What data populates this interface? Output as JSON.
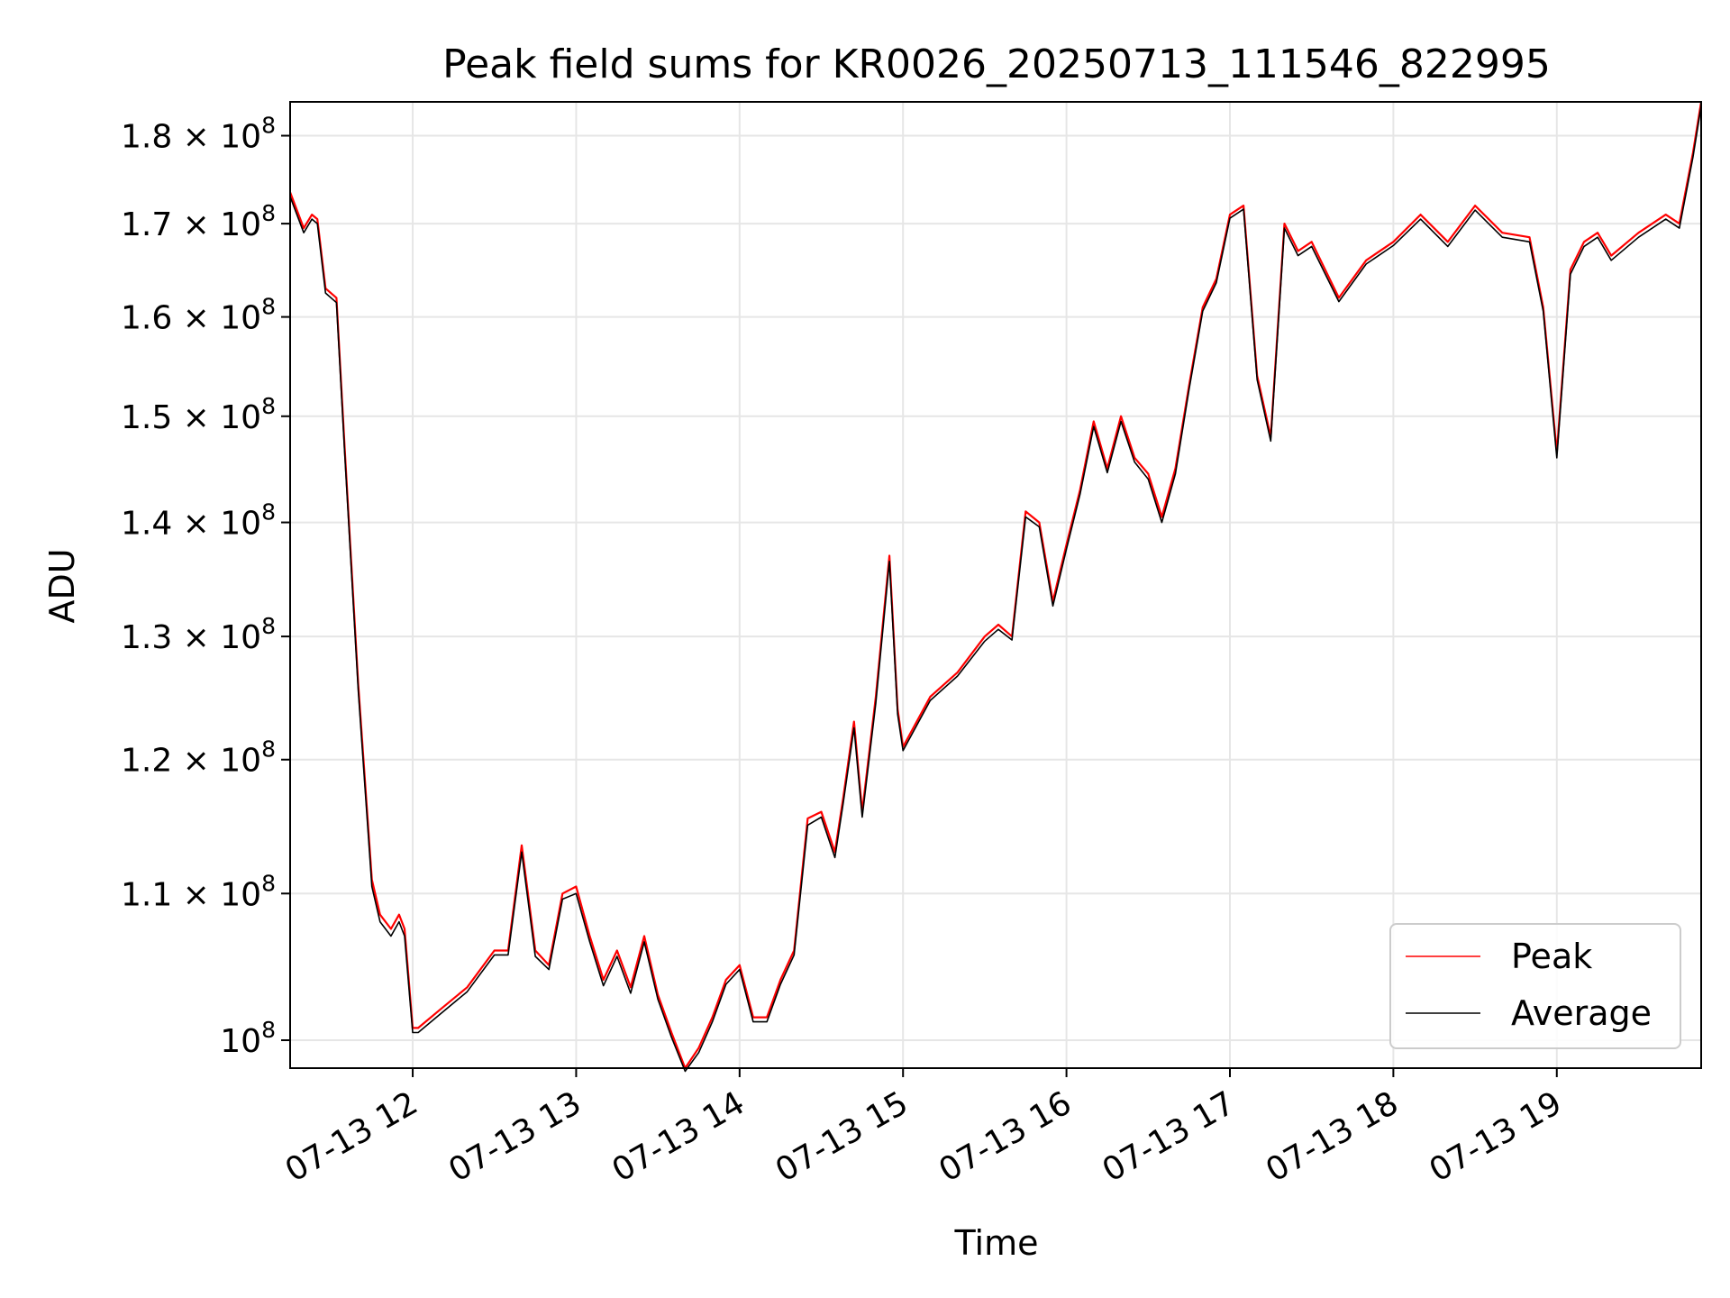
{
  "chart_data": {
    "type": "line",
    "title": "Peak field sums for KR0026_20250713_111546_822995",
    "xlabel": "Time",
    "ylabel": "ADU",
    "y_scale": "log",
    "xlim": [
      "2025-07-13 11:15",
      "2025-07-13 19:53"
    ],
    "ylim": [
      98200000,
      184000000
    ],
    "x_ticks": [
      {
        "value": "2025-07-13 12:00",
        "label": "07-13 12"
      },
      {
        "value": "2025-07-13 13:00",
        "label": "07-13 13"
      },
      {
        "value": "2025-07-13 14:00",
        "label": "07-13 14"
      },
      {
        "value": "2025-07-13 15:00",
        "label": "07-13 15"
      },
      {
        "value": "2025-07-13 16:00",
        "label": "07-13 16"
      },
      {
        "value": "2025-07-13 17:00",
        "label": "07-13 17"
      },
      {
        "value": "2025-07-13 18:00",
        "label": "07-13 18"
      },
      {
        "value": "2025-07-13 19:00",
        "label": "07-13 19"
      }
    ],
    "y_ticks": [
      {
        "value": 100000000,
        "mantissa": "",
        "exponent": "8"
      },
      {
        "value": 110000000,
        "mantissa": "1.1",
        "exponent": "8"
      },
      {
        "value": 120000000,
        "mantissa": "1.2",
        "exponent": "8"
      },
      {
        "value": 130000000,
        "mantissa": "1.3",
        "exponent": "8"
      },
      {
        "value": 140000000,
        "mantissa": "1.4",
        "exponent": "8"
      },
      {
        "value": 150000000,
        "mantissa": "1.5",
        "exponent": "8"
      },
      {
        "value": 160000000,
        "mantissa": "1.6",
        "exponent": "8"
      },
      {
        "value": 170000000,
        "mantissa": "1.7",
        "exponent": "8"
      },
      {
        "value": 180000000,
        "mantissa": "1.8",
        "exponent": "8"
      }
    ],
    "grid": true,
    "legend_position": "lower-right",
    "series": [
      {
        "name": "Peak",
        "color": "#ff0000",
        "x": [
          "2025-07-13 11:15",
          "2025-07-13 11:20",
          "2025-07-13 11:23",
          "2025-07-13 11:25",
          "2025-07-13 11:28",
          "2025-07-13 11:32",
          "2025-07-13 11:35",
          "2025-07-13 11:40",
          "2025-07-13 11:45",
          "2025-07-13 11:48",
          "2025-07-13 11:52",
          "2025-07-13 11:55",
          "2025-07-13 11:57",
          "2025-07-13 12:00",
          "2025-07-13 12:02",
          "2025-07-13 12:10",
          "2025-07-13 12:20",
          "2025-07-13 12:30",
          "2025-07-13 12:35",
          "2025-07-13 12:40",
          "2025-07-13 12:45",
          "2025-07-13 12:50",
          "2025-07-13 12:55",
          "2025-07-13 13:00",
          "2025-07-13 13:05",
          "2025-07-13 13:10",
          "2025-07-13 13:15",
          "2025-07-13 13:20",
          "2025-07-13 13:25",
          "2025-07-13 13:30",
          "2025-07-13 13:35",
          "2025-07-13 13:40",
          "2025-07-13 13:45",
          "2025-07-13 13:50",
          "2025-07-13 13:55",
          "2025-07-13 14:00",
          "2025-07-13 14:05",
          "2025-07-13 14:10",
          "2025-07-13 14:15",
          "2025-07-13 14:20",
          "2025-07-13 14:25",
          "2025-07-13 14:30",
          "2025-07-13 14:35",
          "2025-07-13 14:38",
          "2025-07-13 14:42",
          "2025-07-13 14:45",
          "2025-07-13 14:50",
          "2025-07-13 14:55",
          "2025-07-13 14:58",
          "2025-07-13 15:00",
          "2025-07-13 15:10",
          "2025-07-13 15:20",
          "2025-07-13 15:30",
          "2025-07-13 15:35",
          "2025-07-13 15:40",
          "2025-07-13 15:45",
          "2025-07-13 15:50",
          "2025-07-13 15:55",
          "2025-07-13 16:00",
          "2025-07-13 16:05",
          "2025-07-13 16:10",
          "2025-07-13 16:15",
          "2025-07-13 16:20",
          "2025-07-13 16:25",
          "2025-07-13 16:30",
          "2025-07-13 16:35",
          "2025-07-13 16:40",
          "2025-07-13 16:45",
          "2025-07-13 16:50",
          "2025-07-13 16:55",
          "2025-07-13 17:00",
          "2025-07-13 17:05",
          "2025-07-13 17:10",
          "2025-07-13 17:15",
          "2025-07-13 17:20",
          "2025-07-13 17:25",
          "2025-07-13 17:30",
          "2025-07-13 17:40",
          "2025-07-13 17:50",
          "2025-07-13 18:00",
          "2025-07-13 18:10",
          "2025-07-13 18:20",
          "2025-07-13 18:30",
          "2025-07-13 18:40",
          "2025-07-13 18:50",
          "2025-07-13 18:55",
          "2025-07-13 19:00",
          "2025-07-13 19:05",
          "2025-07-13 19:10",
          "2025-07-13 19:15",
          "2025-07-13 19:20",
          "2025-07-13 19:30",
          "2025-07-13 19:40",
          "2025-07-13 19:45",
          "2025-07-13 19:50",
          "2025-07-13 19:53"
        ],
        "y": [
          173500000,
          169500000,
          171000000,
          170500000,
          163000000,
          162000000,
          147000000,
          126000000,
          111000000,
          108500000,
          107500000,
          108500000,
          107500000,
          100800000,
          100800000,
          102000000,
          103500000,
          106000000,
          106000000,
          113500000,
          106000000,
          105000000,
          110000000,
          110500000,
          107000000,
          104000000,
          106000000,
          103500000,
          107000000,
          103000000,
          100500000,
          98200000,
          99500000,
          101500000,
          104000000,
          105000000,
          101500000,
          101500000,
          104000000,
          106000000,
          115500000,
          116000000,
          113000000,
          117000000,
          123000000,
          116000000,
          125000000,
          137000000,
          124000000,
          121000000,
          125000000,
          127000000,
          130000000,
          131000000,
          130000000,
          141000000,
          140000000,
          133000000,
          138000000,
          143000000,
          149500000,
          145000000,
          150000000,
          146000000,
          144500000,
          140500000,
          145000000,
          153000000,
          161000000,
          164000000,
          171000000,
          172000000,
          154000000,
          148000000,
          170000000,
          167000000,
          168000000,
          162000000,
          166000000,
          168000000,
          171000000,
          168000000,
          172000000,
          169000000,
          168500000,
          161000000,
          146500000,
          165000000,
          168000000,
          169000000,
          166500000,
          169000000,
          171000000,
          170000000,
          178000000,
          184000000
        ]
      },
      {
        "name": "Average",
        "color": "#000000",
        "x": [
          "2025-07-13 11:15",
          "2025-07-13 11:20",
          "2025-07-13 11:23",
          "2025-07-13 11:25",
          "2025-07-13 11:28",
          "2025-07-13 11:32",
          "2025-07-13 11:35",
          "2025-07-13 11:40",
          "2025-07-13 11:45",
          "2025-07-13 11:48",
          "2025-07-13 11:52",
          "2025-07-13 11:55",
          "2025-07-13 11:57",
          "2025-07-13 12:00",
          "2025-07-13 12:02",
          "2025-07-13 12:10",
          "2025-07-13 12:20",
          "2025-07-13 12:30",
          "2025-07-13 12:35",
          "2025-07-13 12:40",
          "2025-07-13 12:45",
          "2025-07-13 12:50",
          "2025-07-13 12:55",
          "2025-07-13 13:00",
          "2025-07-13 13:05",
          "2025-07-13 13:10",
          "2025-07-13 13:15",
          "2025-07-13 13:20",
          "2025-07-13 13:25",
          "2025-07-13 13:30",
          "2025-07-13 13:35",
          "2025-07-13 13:40",
          "2025-07-13 13:45",
          "2025-07-13 13:50",
          "2025-07-13 13:55",
          "2025-07-13 14:00",
          "2025-07-13 14:05",
          "2025-07-13 14:10",
          "2025-07-13 14:15",
          "2025-07-13 14:20",
          "2025-07-13 14:25",
          "2025-07-13 14:30",
          "2025-07-13 14:35",
          "2025-07-13 14:38",
          "2025-07-13 14:42",
          "2025-07-13 14:45",
          "2025-07-13 14:50",
          "2025-07-13 14:55",
          "2025-07-13 14:58",
          "2025-07-13 15:00",
          "2025-07-13 15:10",
          "2025-07-13 15:20",
          "2025-07-13 15:30",
          "2025-07-13 15:35",
          "2025-07-13 15:40",
          "2025-07-13 15:45",
          "2025-07-13 15:50",
          "2025-07-13 15:55",
          "2025-07-13 16:00",
          "2025-07-13 16:05",
          "2025-07-13 16:10",
          "2025-07-13 16:15",
          "2025-07-13 16:20",
          "2025-07-13 16:25",
          "2025-07-13 16:30",
          "2025-07-13 16:35",
          "2025-07-13 16:40",
          "2025-07-13 16:45",
          "2025-07-13 16:50",
          "2025-07-13 16:55",
          "2025-07-13 17:00",
          "2025-07-13 17:05",
          "2025-07-13 17:10",
          "2025-07-13 17:15",
          "2025-07-13 17:20",
          "2025-07-13 17:25",
          "2025-07-13 17:30",
          "2025-07-13 17:40",
          "2025-07-13 17:50",
          "2025-07-13 18:00",
          "2025-07-13 18:10",
          "2025-07-13 18:20",
          "2025-07-13 18:30",
          "2025-07-13 18:40",
          "2025-07-13 18:50",
          "2025-07-13 18:55",
          "2025-07-13 19:00",
          "2025-07-13 19:05",
          "2025-07-13 19:10",
          "2025-07-13 19:15",
          "2025-07-13 19:20",
          "2025-07-13 19:30",
          "2025-07-13 19:40",
          "2025-07-13 19:45",
          "2025-07-13 19:50",
          "2025-07-13 19:53"
        ],
        "y": [
          173000000,
          169000000,
          170500000,
          170000000,
          162500000,
          161500000,
          146500000,
          125500000,
          110500000,
          108000000,
          107000000,
          108000000,
          107000000,
          100500000,
          100500000,
          101700000,
          103200000,
          105700000,
          105700000,
          113000000,
          105600000,
          104700000,
          109600000,
          110000000,
          106600000,
          103600000,
          105600000,
          103100000,
          106600000,
          102700000,
          100200000,
          98000000,
          99200000,
          101200000,
          103700000,
          104700000,
          101200000,
          101200000,
          103700000,
          105700000,
          115000000,
          115600000,
          112600000,
          116600000,
          122500000,
          115600000,
          124500000,
          136500000,
          123600000,
          120700000,
          124700000,
          126700000,
          129600000,
          130600000,
          129700000,
          140500000,
          139600000,
          132600000,
          137600000,
          142600000,
          149000000,
          144600000,
          149500000,
          145600000,
          144000000,
          140000000,
          144500000,
          152600000,
          160600000,
          163600000,
          170600000,
          171600000,
          153600000,
          147600000,
          169500000,
          166500000,
          167500000,
          161600000,
          165600000,
          167600000,
          170500000,
          167500000,
          171500000,
          168500000,
          168000000,
          160600000,
          146000000,
          164500000,
          167500000,
          168500000,
          166000000,
          168500000,
          170500000,
          169500000,
          177500000,
          183500000
        ]
      }
    ]
  }
}
